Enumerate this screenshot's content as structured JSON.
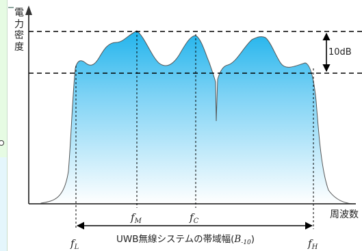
{
  "y_axis_label_chars": [
    "電",
    "力",
    "密",
    "度"
  ],
  "x_axis_label": "周波数",
  "db_label": "10dB",
  "bandwidth_label": "UWB無線システムの帯域幅(",
  "bandwidth_symbol": "B",
  "bandwidth_sub": "-10",
  "bandwidth_close": ")",
  "freq_markers": {
    "fL": {
      "base": "f",
      "sub": "L"
    },
    "fM": {
      "base": "f",
      "sub": "M"
    },
    "fC": {
      "base": "f",
      "sub": "C"
    },
    "fH": {
      "base": "f",
      "sub": "H"
    }
  },
  "colors": {
    "fill_top": "#22b4ec",
    "fill_bottom": "#ffffff",
    "axis": "#333333",
    "curve": "#555555",
    "dashed": "#000000"
  }
}
